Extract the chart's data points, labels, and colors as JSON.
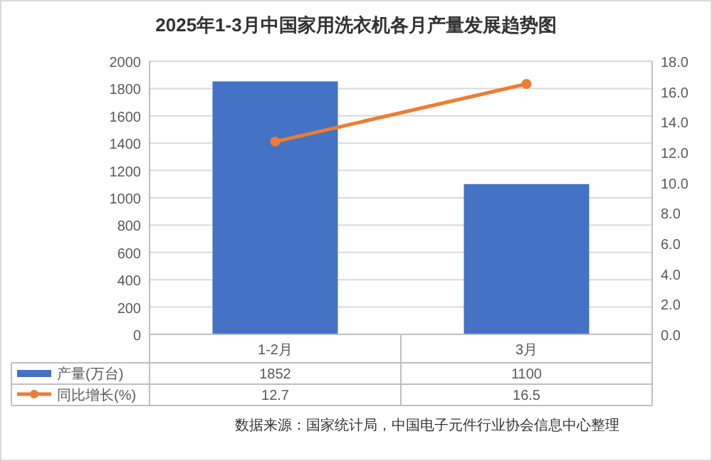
{
  "chart_data": {
    "type": "bar",
    "title": "2025年1-3月中国家用洗衣机各月产量发展趋势图",
    "categories": [
      "1-2月",
      "3月"
    ],
    "series": [
      {
        "name": "产量(万台)",
        "color": "#4472c4",
        "values": [
          1852,
          1100
        ]
      },
      {
        "name": "同比增长(%)",
        "type": "line",
        "color": "#ed7d31",
        "axis": "y2",
        "marker": "circle",
        "values": [
          12.7,
          16.5
        ]
      }
    ],
    "ylim": [
      0,
      2000
    ],
    "yticks": [
      0,
      200,
      400,
      600,
      800,
      1000,
      1200,
      1400,
      1600,
      1800,
      2000
    ],
    "y2lim": [
      0,
      18
    ],
    "y2ticks": [
      {
        "value": 0,
        "label": "0.0"
      },
      {
        "value": 2,
        "label": "2.0"
      },
      {
        "value": 4,
        "label": "4.0"
      },
      {
        "value": 6,
        "label": "6.0"
      },
      {
        "value": 8,
        "label": "8.0"
      },
      {
        "value": 10,
        "label": "10.0"
      },
      {
        "value": 12,
        "label": "12.0"
      },
      {
        "value": 14,
        "label": "14.0"
      },
      {
        "value": 16,
        "label": "16.0"
      },
      {
        "value": 18,
        "label": "18.0"
      }
    ],
    "grid": "y",
    "legend": "bottom",
    "data_labels": true,
    "annotations": [
      "数据来源：国家统计局，中国电子元件行业协会信息中心整理"
    ]
  }
}
